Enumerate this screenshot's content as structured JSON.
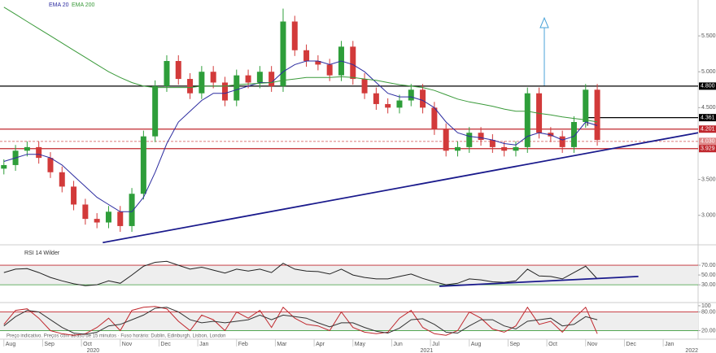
{
  "chart_data": [
    {
      "type": "candlestick",
      "legend": [
        "EMA 20",
        "EMA 200"
      ],
      "xlim": [
        -0.1,
        17.9
      ],
      "xticks": [
        {
          "value": 0,
          "label": "Aug"
        },
        {
          "value": 1,
          "label": "Sep"
        },
        {
          "value": 2,
          "label": "Oct"
        },
        {
          "value": 3,
          "label": "Nov"
        },
        {
          "value": 4,
          "label": "Dec"
        },
        {
          "value": 5,
          "label": "Jan"
        },
        {
          "value": 6,
          "label": "Feb"
        },
        {
          "value": 7,
          "label": "Mar"
        },
        {
          "value": 8,
          "label": "Apr"
        },
        {
          "value": 9,
          "label": "May"
        },
        {
          "value": 10,
          "label": "Jun"
        },
        {
          "value": 11,
          "label": "Jul"
        },
        {
          "value": 12,
          "label": "Aug"
        },
        {
          "value": 13,
          "label": "Sep"
        },
        {
          "value": 14,
          "label": "Oct"
        },
        {
          "value": 15,
          "label": "Nov"
        },
        {
          "value": 16,
          "label": "Dec"
        },
        {
          "value": 17,
          "label": "Jan"
        }
      ],
      "year_labels": [
        {
          "value": 2.3,
          "label": "2020"
        },
        {
          "value": 10.9,
          "label": "2021"
        },
        {
          "value": 17.9,
          "label": "2022"
        }
      ],
      "ylim": [
        2.6,
        6.0
      ],
      "yticks": [
        {
          "value": 3,
          "label": "3.000"
        },
        {
          "value": 3.5,
          "label": "3.500"
        },
        {
          "value": 4.5,
          "label": "4.500"
        },
        {
          "value": 5,
          "label": "5.000"
        },
        {
          "value": 5.5,
          "label": "5.500"
        }
      ],
      "up_color": "#2e9e3a",
      "down_color": "#d23a3a",
      "x": [
        0,
        0.3,
        0.6,
        0.9,
        1.2,
        1.5,
        1.8,
        2.1,
        2.4,
        2.7,
        3.0,
        3.3,
        3.6,
        3.9,
        4.2,
        4.5,
        4.8,
        5.1,
        5.4,
        5.7,
        6.0,
        6.3,
        6.6,
        6.9,
        7.2,
        7.5,
        7.8,
        8.1,
        8.4,
        8.7,
        9.0,
        9.3,
        9.6,
        9.9,
        10.2,
        10.5,
        10.8,
        11.1,
        11.4,
        11.7,
        12.0,
        12.3,
        12.6,
        12.9,
        13.2,
        13.5,
        13.8,
        14.1,
        14.4,
        14.7,
        15.0,
        15.3
      ],
      "open": [
        3.65,
        3.7,
        3.9,
        3.95,
        3.8,
        3.6,
        3.4,
        3.15,
        2.95,
        2.9,
        3.05,
        2.85,
        3.3,
        4.1,
        4.8,
        5.15,
        4.9,
        4.7,
        5.0,
        4.85,
        4.6,
        4.95,
        4.85,
        5.0,
        4.8,
        5.7,
        5.3,
        5.15,
        5.1,
        4.95,
        5.35,
        4.9,
        4.7,
        4.55,
        4.5,
        4.6,
        4.75,
        4.5,
        4.2,
        3.9,
        3.95,
        4.15,
        4.05,
        3.95,
        3.9,
        3.95,
        4.7,
        4.15,
        4.1,
        3.95,
        4.3,
        4.75
      ],
      "high": [
        3.78,
        3.98,
        4.03,
        4.03,
        3.88,
        3.68,
        3.48,
        3.23,
        3.03,
        3.13,
        3.13,
        3.38,
        4.18,
        4.88,
        5.23,
        5.23,
        4.98,
        5.08,
        5.08,
        4.93,
        5.03,
        5.03,
        5.08,
        5.08,
        5.88,
        5.78,
        5.38,
        5.23,
        5.18,
        5.43,
        5.43,
        4.98,
        4.78,
        4.63,
        4.68,
        4.83,
        4.83,
        4.58,
        4.28,
        4.03,
        4.23,
        4.23,
        4.13,
        4.03,
        4.03,
        4.78,
        4.78,
        4.23,
        4.18,
        4.38,
        4.83,
        4.83
      ],
      "low": [
        3.57,
        3.62,
        3.82,
        3.72,
        3.52,
        3.32,
        3.07,
        2.87,
        2.82,
        2.82,
        2.77,
        2.77,
        3.22,
        4.02,
        4.72,
        4.82,
        4.62,
        4.62,
        4.77,
        4.52,
        4.52,
        4.77,
        4.77,
        4.72,
        4.72,
        5.22,
        5.07,
        5.02,
        4.87,
        4.87,
        4.82,
        4.62,
        4.47,
        4.42,
        4.42,
        4.52,
        4.42,
        4.12,
        3.82,
        3.82,
        3.87,
        3.97,
        3.87,
        3.82,
        3.82,
        3.87,
        4.07,
        4.02,
        3.87,
        3.87,
        4.22,
        3.97
      ],
      "close": [
        3.7,
        3.9,
        3.95,
        3.8,
        3.6,
        3.4,
        3.15,
        2.95,
        2.9,
        3.05,
        2.85,
        3.3,
        4.1,
        4.8,
        5.15,
        4.9,
        4.7,
        5.0,
        4.85,
        4.6,
        4.95,
        4.85,
        5.0,
        4.8,
        5.7,
        5.3,
        5.15,
        5.1,
        4.95,
        5.35,
        4.9,
        4.7,
        4.55,
        4.5,
        4.6,
        4.75,
        4.5,
        4.2,
        3.9,
        3.95,
        4.15,
        4.05,
        3.95,
        3.9,
        3.95,
        4.7,
        4.15,
        4.1,
        3.95,
        4.3,
        4.75,
        4.05
      ],
      "series": [
        {
          "name": "EMA 20",
          "color": "#2c2ca0",
          "values": [
            3.75,
            3.8,
            3.85,
            3.85,
            3.8,
            3.7,
            3.55,
            3.4,
            3.25,
            3.15,
            3.05,
            3.05,
            3.25,
            3.6,
            4.0,
            4.3,
            4.45,
            4.6,
            4.7,
            4.7,
            4.75,
            4.8,
            4.85,
            4.85,
            5.0,
            5.1,
            5.15,
            5.15,
            5.1,
            5.15,
            5.1,
            5.0,
            4.85,
            4.7,
            4.65,
            4.65,
            4.6,
            4.5,
            4.3,
            4.15,
            4.1,
            4.08,
            4.05,
            4.0,
            3.98,
            4.1,
            4.15,
            4.12,
            4.05,
            4.1,
            4.3,
            4.25
          ]
        },
        {
          "name": "EMA 200",
          "color": "#3a9a3a",
          "values": [
            5.9,
            5.8,
            5.7,
            5.6,
            5.5,
            5.4,
            5.3,
            5.2,
            5.1,
            5.0,
            4.92,
            4.85,
            4.8,
            4.78,
            4.78,
            4.78,
            4.78,
            4.8,
            4.8,
            4.8,
            4.82,
            4.83,
            4.84,
            4.85,
            4.88,
            4.9,
            4.92,
            4.92,
            4.92,
            4.93,
            4.92,
            4.9,
            4.88,
            4.85,
            4.82,
            4.8,
            4.78,
            4.74,
            4.68,
            4.62,
            4.58,
            4.55,
            4.52,
            4.48,
            4.45,
            4.45,
            4.42,
            4.4,
            4.37,
            4.35,
            4.33,
            4.3
          ]
        }
      ],
      "levels": [
        {
          "value": 4.8,
          "label": "4.800",
          "color": "#000000"
        },
        {
          "value": 4.361,
          "label": "4.361",
          "color": "#000000",
          "x_start": 15.05
        },
        {
          "value": 4.201,
          "label": "4.201",
          "color": "#c0272d"
        },
        {
          "value": 4.03,
          "label": "4.030",
          "color": "#e08a8a",
          "dashed": true
        },
        {
          "value": 3.929,
          "label": "3.929",
          "color": "#c0272d"
        }
      ],
      "trendline": {
        "color": "#1a1a8c",
        "x": [
          2.55,
          17.9
        ],
        "y": [
          2.62,
          4.15
        ]
      }
    },
    {
      "type": "line",
      "label": "RSI 14 Wilder",
      "ylim": [
        -3,
        105
      ],
      "yticks": [
        {
          "value": 30,
          "label": "30.00"
        },
        {
          "value": 50,
          "label": "50.00"
        },
        {
          "value": 70,
          "label": "70.00"
        }
      ],
      "upper": 70,
      "lower": 30,
      "series": [
        {
          "name": "RSI 14 Wilder",
          "color": "#222222",
          "values": [
            55,
            62,
            63,
            55,
            45,
            38,
            32,
            28,
            30,
            38,
            33,
            50,
            68,
            76,
            78,
            70,
            62,
            66,
            60,
            54,
            62,
            58,
            62,
            55,
            74,
            62,
            58,
            57,
            52,
            62,
            50,
            45,
            42,
            42,
            47,
            52,
            43,
            36,
            30,
            33,
            42,
            40,
            36,
            35,
            38,
            62,
            48,
            47,
            42,
            55,
            68,
            42
          ]
        }
      ],
      "trendline": {
        "color": "#1a1a8c",
        "x": [
          11.23,
          16.36
        ],
        "y": [
          27,
          47
        ]
      }
    },
    {
      "type": "line",
      "note": "Preço indicativo. Preços com atraso de 15 minutos · Fuso horário: Dublin, Edinburgh, Lisbon, London",
      "ylim": [
        -5,
        105
      ],
      "yticks": [
        {
          "value": 20,
          "label": "20.00"
        },
        {
          "value": 80,
          "label": "80.00"
        },
        100
      ],
      "upper": 80,
      "lower": 20,
      "series": [
        {
          "color": "#c0272d",
          "values": [
            40,
            85,
            90,
            60,
            20,
            10,
            5,
            10,
            30,
            60,
            20,
            85,
            95,
            98,
            90,
            50,
            20,
            70,
            55,
            20,
            80,
            60,
            85,
            30,
            95,
            60,
            40,
            35,
            20,
            80,
            30,
            15,
            10,
            15,
            60,
            85,
            30,
            10,
            5,
            20,
            80,
            60,
            25,
            15,
            35,
            95,
            40,
            50,
            15,
            60,
            95,
            10
          ]
        },
        {
          "color": "#333333",
          "values": [
            35,
            65,
            85,
            80,
            55,
            30,
            12,
            8,
            15,
            35,
            40,
            55,
            70,
            92,
            95,
            80,
            55,
            45,
            50,
            45,
            50,
            55,
            70,
            55,
            70,
            65,
            60,
            45,
            32,
            45,
            45,
            30,
            18,
            12,
            28,
            55,
            58,
            40,
            15,
            12,
            35,
            55,
            55,
            35,
            25,
            50,
            55,
            60,
            35,
            40,
            65,
            55
          ]
        }
      ]
    }
  ]
}
